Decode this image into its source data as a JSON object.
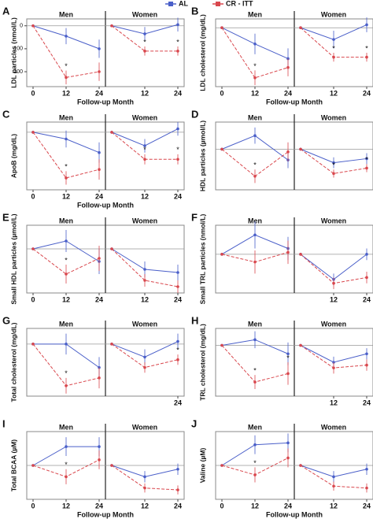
{
  "legend": [
    {
      "name": "AL",
      "color": "#4a5fc9"
    },
    {
      "name": "CR - ITT",
      "color": "#d9474d"
    }
  ],
  "sig_symbol": "*",
  "chart_data": [
    {
      "type": "line",
      "letter": "A",
      "ylabel": "LDL particles (nmol/L)",
      "xlabel": "Follow-up Month",
      "x": [
        0,
        12,
        24
      ],
      "ylim": [
        -265,
        30
      ],
      "yticks": [
        0,
        {
          "value": -100,
          "label": "100"
        },
        {
          "value": -200,
          "label": "200"
        }
      ],
      "facets": [
        {
          "title": "Men",
          "xticks": [
            0,
            12,
            24
          ],
          "sig": [
            12
          ],
          "series": [
            {
              "values": [
                0,
                -45,
                -100
              ],
              "errors": [
                0,
                35,
                40
              ]
            },
            {
              "values": [
                0,
                -225,
                -200
              ],
              "errors": [
                0,
                30,
                40
              ]
            }
          ]
        },
        {
          "title": "Women",
          "xticks": [
            12,
            24
          ],
          "sig": [
            12,
            24
          ],
          "series": [
            {
              "values": [
                0,
                -35,
                5
              ],
              "errors": [
                0,
                30,
                30
              ]
            },
            {
              "values": [
                0,
                -110,
                -110
              ],
              "errors": [
                0,
                20,
                20
              ]
            }
          ]
        }
      ]
    },
    {
      "type": "line",
      "letter": "B",
      "ylabel": "LDL cholesterol (mg/dL)",
      "xlabel": "Follow-up Month",
      "x": [
        0,
        12,
        24
      ],
      "ylim": [
        -2,
        0.3
      ],
      "facets": [
        {
          "title": "Men",
          "xticks": [
            0,
            12,
            24
          ],
          "sig": [
            12
          ],
          "series": [
            {
              "values": [
                0,
                -0.55,
                -1.05
              ],
              "errors": [
                0,
                0.35,
                0.35
              ]
            },
            {
              "values": [
                0,
                -1.7,
                -1.35
              ],
              "errors": [
                0,
                0.25,
                0.3
              ]
            }
          ]
        },
        {
          "title": "Women",
          "xticks": [
            12,
            24
          ],
          "sig": [
            12,
            24
          ],
          "series": [
            {
              "values": [
                0,
                -0.4,
                0.1
              ],
              "errors": [
                0,
                0.3,
                0.25
              ]
            },
            {
              "values": [
                0,
                -1.0,
                -1.0
              ],
              "errors": [
                0,
                0.15,
                0.15
              ]
            }
          ]
        }
      ]
    },
    {
      "type": "line",
      "letter": "C",
      "ylabel": "ApoB (mg/dL)",
      "xlabel": "Follow-up Month",
      "x": [
        0,
        12,
        24
      ],
      "ylim": [
        -17,
        3
      ],
      "facets": [
        {
          "title": "Men",
          "xticks": [
            0,
            12,
            24
          ],
          "sig": [
            12
          ],
          "series": [
            {
              "values": [
                0,
                -2,
                -6
              ],
              "errors": [
                0,
                2.5,
                3
              ]
            },
            {
              "values": [
                0,
                -13.5,
                -11
              ],
              "errors": [
                0,
                2,
                3
              ]
            }
          ]
        },
        {
          "title": "Women",
          "xticks": [
            12,
            24
          ],
          "sig": [
            12,
            24
          ],
          "series": [
            {
              "values": [
                0,
                -4,
                1
              ],
              "errors": [
                0,
                2,
                2
              ]
            },
            {
              "values": [
                0,
                -8,
                -8
              ],
              "errors": [
                0,
                1.5,
                1.5
              ]
            }
          ]
        }
      ]
    },
    {
      "type": "line",
      "letter": "D",
      "ylabel": "HDL particles (µmol/L)",
      "x": [
        0,
        12,
        24
      ],
      "ylim": [
        -3,
        2
      ],
      "facets": [
        {
          "title": "Men",
          "xticks": [],
          "sig": [
            12
          ],
          "series": [
            {
              "values": [
                0,
                1,
                -0.8
              ],
              "errors": [
                0,
                0.6,
                0.6
              ]
            },
            {
              "values": [
                0,
                -2,
                -0.2
              ],
              "errors": [
                0,
                0.5,
                0.7
              ]
            }
          ]
        },
        {
          "title": "Women",
          "xticks": [],
          "sig": [
            12,
            24
          ],
          "series": [
            {
              "values": [
                0,
                -1,
                -0.7
              ],
              "errors": [
                0,
                0.4,
                0.4
              ]
            },
            {
              "values": [
                0,
                -1.8,
                -1.4
              ],
              "errors": [
                0,
                0.3,
                0.3
              ]
            }
          ]
        }
      ]
    },
    {
      "type": "line",
      "letter": "E",
      "ylabel": "Small HDL particles (µmol/L)",
      "x": [
        0,
        12,
        24
      ],
      "ylim": [
        -2.8,
        1.5
      ],
      "facets": [
        {
          "title": "Men",
          "xticks": [
            0,
            12,
            24
          ],
          "sig": [
            12
          ],
          "series": [
            {
              "values": [
                0,
                0.5,
                -0.8
              ],
              "errors": [
                0,
                0.7,
                0.8
              ]
            },
            {
              "values": [
                0,
                -1.6,
                -0.6
              ],
              "errors": [
                0,
                0.6,
                0.8
              ]
            }
          ]
        },
        {
          "title": "Women",
          "xticks": [
            12,
            24
          ],
          "sig": [],
          "series": [
            {
              "values": [
                0,
                -1.3,
                -1.5
              ],
              "errors": [
                0,
                0.5,
                0.5
              ]
            },
            {
              "values": [
                0,
                -2,
                -2.4
              ],
              "errors": [
                0,
                0.4,
                0.4
              ]
            }
          ]
        }
      ]
    },
    {
      "type": "line",
      "letter": "F",
      "ylabel": "Small TRL particles (nmol/L)",
      "x": [
        0,
        12,
        24
      ],
      "ylim": [
        -2,
        1.5
      ],
      "facets": [
        {
          "title": "Men",
          "xticks": [],
          "sig": [],
          "series": [
            {
              "values": [
                0,
                1,
                0.3
              ],
              "errors": [
                0,
                0.7,
                0.6
              ]
            },
            {
              "values": [
                0,
                -0.4,
                0.1
              ],
              "errors": [
                0,
                0.6,
                0.6
              ]
            }
          ]
        },
        {
          "title": "Women",
          "xticks": [
            12,
            24
          ],
          "sig": [],
          "series": [
            {
              "values": [
                0,
                -1.3,
                0
              ],
              "errors": [
                0,
                0.3,
                0.3
              ]
            },
            {
              "values": [
                0,
                -1.5,
                -1.2
              ],
              "errors": [
                0,
                0.3,
                0.3
              ]
            }
          ]
        }
      ]
    },
    {
      "type": "line",
      "letter": "G",
      "ylabel": "Total cholesterol (mg/dL)",
      "x": [
        0,
        12,
        24
      ],
      "ylim": [
        -2,
        0.6
      ],
      "facets": [
        {
          "title": "Men",
          "xticks": [],
          "sig": [
            12
          ],
          "series": [
            {
              "values": [
                0,
                0,
                -0.9
              ],
              "errors": [
                0,
                0.4,
                0.4
              ]
            },
            {
              "values": [
                0,
                -1.6,
                -1.3
              ],
              "errors": [
                0,
                0.3,
                0.4
              ]
            }
          ]
        },
        {
          "title": "Women",
          "xticks": [
            24
          ],
          "sig": [
            24
          ],
          "series": [
            {
              "values": [
                0,
                -0.5,
                0.1
              ],
              "errors": [
                0,
                0.3,
                0.3
              ]
            },
            {
              "values": [
                0,
                -0.9,
                -0.6
              ],
              "errors": [
                0,
                0.2,
                0.2
              ]
            }
          ]
        }
      ]
    },
    {
      "type": "line",
      "letter": "H",
      "ylabel": "TRL cholesterol (mg/dL)",
      "x": [
        0,
        12,
        24
      ],
      "ylim": [
        -1.8,
        0.6
      ],
      "facets": [
        {
          "title": "Men",
          "xticks": [],
          "sig": [
            12,
            24
          ],
          "series": [
            {
              "values": [
                0,
                0.2,
                -0.3
              ],
              "errors": [
                0,
                0.3,
                0.4
              ]
            },
            {
              "values": [
                0,
                -1.3,
                -1.0
              ],
              "errors": [
                0,
                0.25,
                0.4
              ]
            }
          ]
        },
        {
          "title": "Women",
          "xticks": [
            12,
            24
          ],
          "sig": [],
          "series": [
            {
              "values": [
                0,
                -0.6,
                -0.3
              ],
              "errors": [
                0,
                0.2,
                0.2
              ]
            },
            {
              "values": [
                0,
                -0.8,
                -0.7
              ],
              "errors": [
                0,
                0.2,
                0.2
              ]
            }
          ]
        }
      ]
    },
    {
      "type": "line",
      "letter": "I",
      "ylabel": "Total BCAA (µM)",
      "xlabel": "Follow-up Month",
      "x": [
        0,
        12,
        24
      ],
      "ylim": [
        -0.9,
        0.9
      ],
      "facets": [
        {
          "title": "Men",
          "xticks": [
            0,
            12,
            24
          ],
          "sig": [
            12
          ],
          "series": [
            {
              "values": [
                0,
                0.5,
                0.5
              ],
              "errors": [
                0,
                0.25,
                0.25
              ]
            },
            {
              "values": [
                0,
                -0.3,
                0.15
              ],
              "errors": [
                0,
                0.2,
                0.25
              ]
            }
          ]
        },
        {
          "title": "Women",
          "xticks": [
            12,
            24
          ],
          "sig": [],
          "series": [
            {
              "values": [
                0,
                -0.3,
                -0.1
              ],
              "errors": [
                0,
                0.15,
                0.15
              ]
            },
            {
              "values": [
                0,
                -0.6,
                -0.65
              ],
              "errors": [
                0,
                0.12,
                0.12
              ]
            }
          ]
        }
      ]
    },
    {
      "type": "line",
      "letter": "J",
      "ylabel": "Valine (µM)",
      "xlabel": "Follow-up Month",
      "x": [
        0,
        12,
        24
      ],
      "ylim": [
        -0.9,
        0.9
      ],
      "facets": [
        {
          "title": "Men",
          "xticks": [
            0,
            12,
            24
          ],
          "sig": [
            12
          ],
          "series": [
            {
              "values": [
                0,
                0.55,
                0.6
              ],
              "errors": [
                0,
                0.25,
                0.25
              ]
            },
            {
              "values": [
                0,
                -0.25,
                0.2
              ],
              "errors": [
                0,
                0.2,
                0.25
              ]
            }
          ]
        },
        {
          "title": "Women",
          "xticks": [
            12,
            24
          ],
          "sig": [],
          "series": [
            {
              "values": [
                0,
                -0.3,
                -0.1
              ],
              "errors": [
                0,
                0.15,
                0.15
              ]
            },
            {
              "values": [
                0,
                -0.55,
                -0.6
              ],
              "errors": [
                0,
                0.12,
                0.12
              ]
            }
          ]
        }
      ]
    }
  ]
}
